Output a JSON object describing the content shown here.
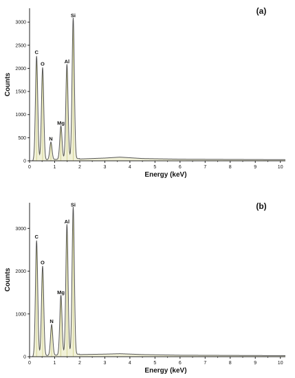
{
  "chart_data": [
    {
      "type": "line",
      "panel_label": "(a)",
      "xlabel": "Energy (keV)",
      "ylabel": "Counts",
      "xlim": [
        0,
        10.2
      ],
      "ylim": [
        0,
        3300
      ],
      "x_ticks": [
        0,
        1,
        2,
        3,
        4,
        5,
        6,
        7,
        8,
        9,
        10
      ],
      "y_ticks": [
        0,
        500,
        1000,
        1500,
        2000,
        2500,
        3000
      ],
      "peaks": [
        {
          "label": "C",
          "energy": 0.28,
          "counts": 2250
        },
        {
          "label": "O",
          "energy": 0.52,
          "counts": 2000
        },
        {
          "label": "N",
          "energy": 0.85,
          "counts": 380
        },
        {
          "label": "Mg",
          "energy": 1.25,
          "counts": 720
        },
        {
          "label": "Al",
          "energy": 1.49,
          "counts": 2050
        },
        {
          "label": "Si",
          "energy": 1.74,
          "counts": 3050
        }
      ],
      "background": [
        [
          2.0,
          40
        ],
        [
          3.0,
          60
        ],
        [
          3.6,
          80
        ],
        [
          4.5,
          50
        ],
        [
          6.0,
          35
        ],
        [
          8.0,
          30
        ],
        [
          10.2,
          25
        ]
      ]
    },
    {
      "type": "line",
      "panel_label": "(b)",
      "xlabel": "Energy (keV)",
      "ylabel": "Counts",
      "xlim": [
        0,
        10.2
      ],
      "ylim": [
        0,
        3600
      ],
      "x_ticks": [
        0,
        1,
        2,
        3,
        4,
        5,
        6,
        7,
        8,
        9,
        10
      ],
      "y_ticks": [
        0,
        1000,
        2000,
        3000
      ],
      "peaks": [
        {
          "label": "C",
          "energy": 0.28,
          "counts": 2700
        },
        {
          "label": "O",
          "energy": 0.52,
          "counts": 2100
        },
        {
          "label": "N",
          "energy": 0.88,
          "counts": 720
        },
        {
          "label": "Mg",
          "energy": 1.25,
          "counts": 1400
        },
        {
          "label": "Al",
          "energy": 1.49,
          "counts": 3050
        },
        {
          "label": "Si",
          "energy": 1.74,
          "counts": 3450
        }
      ],
      "background": [
        [
          2.0,
          50
        ],
        [
          3.0,
          60
        ],
        [
          3.6,
          70
        ],
        [
          4.5,
          50
        ],
        [
          6.0,
          35
        ],
        [
          8.0,
          30
        ],
        [
          10.2,
          25
        ]
      ]
    }
  ]
}
